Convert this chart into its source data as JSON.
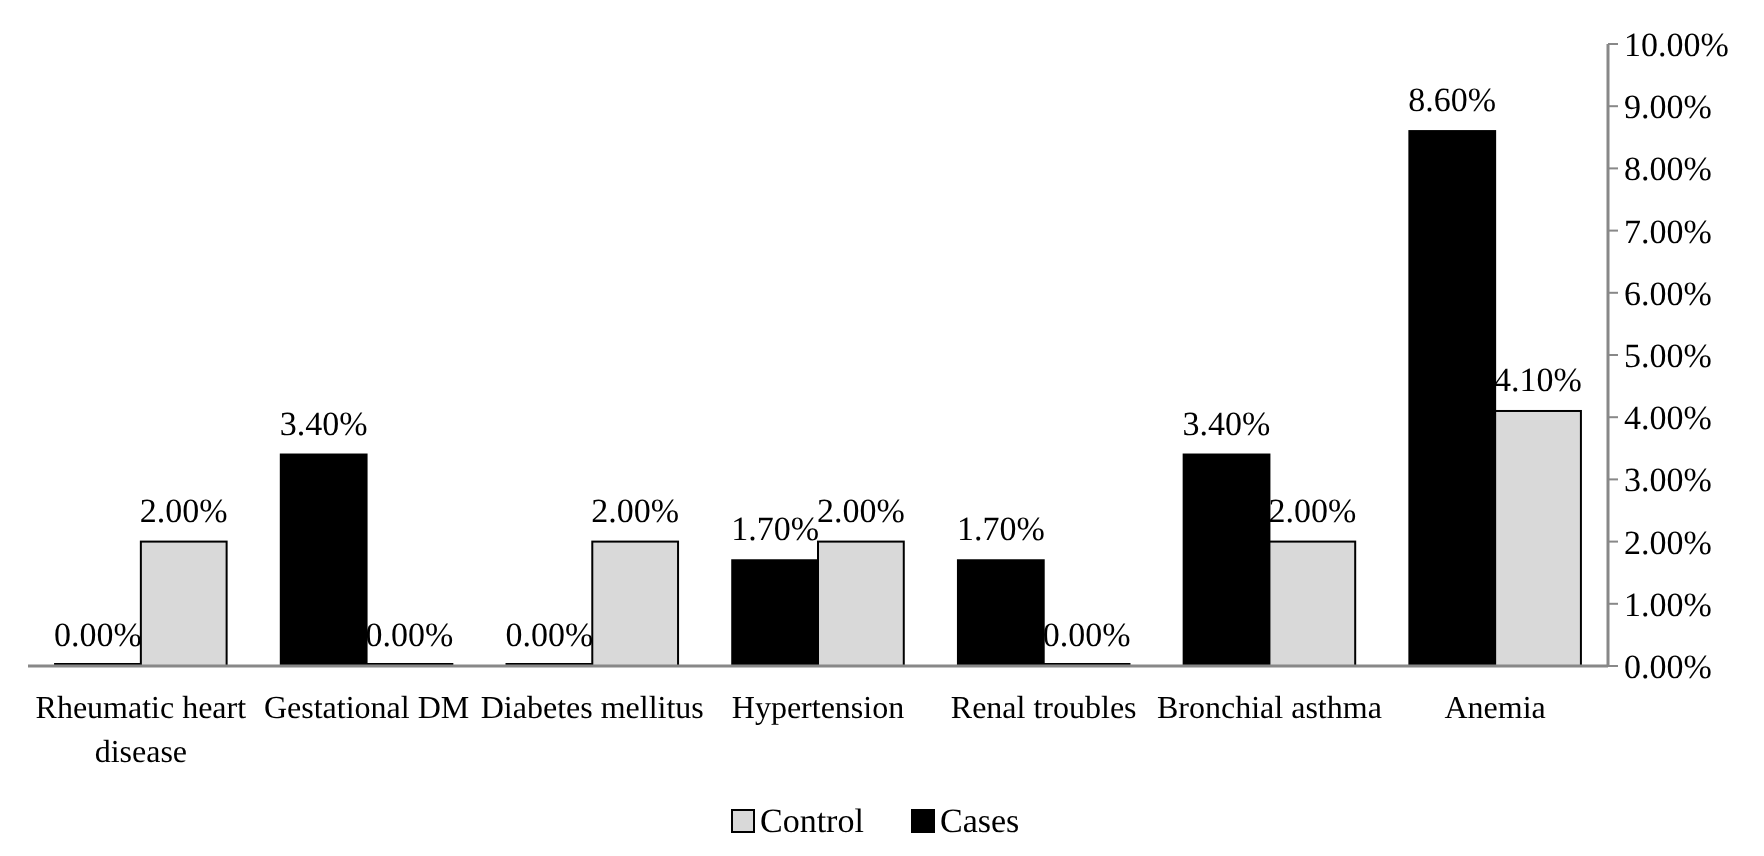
{
  "chart_data": {
    "type": "bar",
    "categories": [
      "Rheumatic heart disease",
      "Gestational DM",
      "Diabetes mellitus",
      "Hypertension",
      "Renal troubles",
      "Bronchial asthma",
      "Anemia"
    ],
    "series": [
      {
        "name": "Cases",
        "color": "#000000",
        "values": [
          0,
          3.4,
          0,
          1.7,
          1.7,
          3.4,
          8.6
        ],
        "value_labels": [
          "0.00%",
          "3.40%",
          "0.00%",
          "1.70%",
          "1.70%",
          "3.40%",
          "8.60%"
        ]
      },
      {
        "name": "Control",
        "color": "#d9d9d9",
        "values": [
          2,
          0,
          2,
          2,
          0,
          2,
          4.1
        ],
        "value_labels": [
          "2.00%",
          "0.00%",
          "2.00%",
          "2.00%",
          "0.00%",
          "2.00%",
          "4.10%"
        ]
      }
    ],
    "ylim": [
      0,
      10
    ],
    "yticks": [
      {
        "value": 0,
        "label": "0.00%"
      },
      {
        "value": 1,
        "label": "1.00%"
      },
      {
        "value": 2,
        "label": "2.00%"
      },
      {
        "value": 3,
        "label": "3.00%"
      },
      {
        "value": 4,
        "label": "4.00%"
      },
      {
        "value": 5,
        "label": "5.00%"
      },
      {
        "value": 6,
        "label": "6.00%"
      },
      {
        "value": 7,
        "label": "7.00%"
      },
      {
        "value": 8,
        "label": "8.00%"
      },
      {
        "value": 9,
        "label": "9.00%"
      },
      {
        "value": 10,
        "label": "10.00%"
      }
    ],
    "grid": false,
    "legend": "bottom"
  }
}
